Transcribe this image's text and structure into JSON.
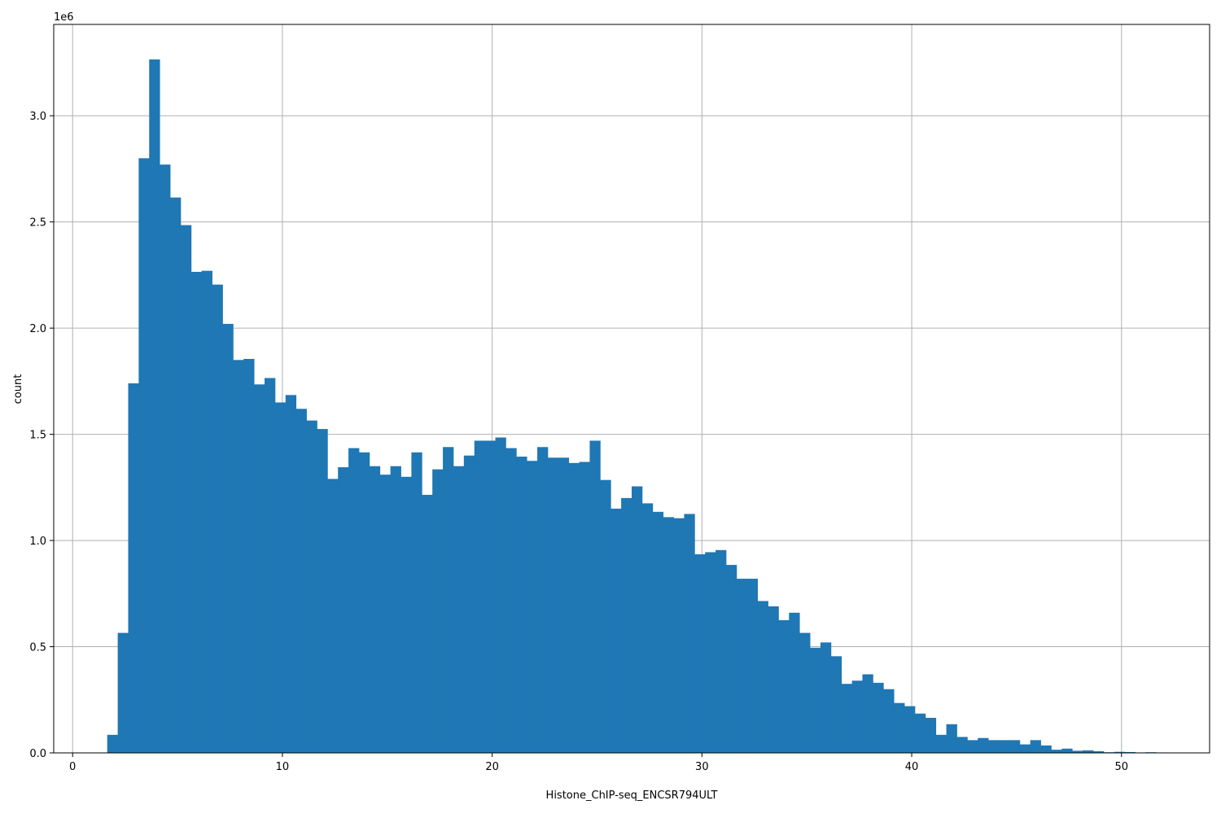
{
  "chart_data": {
    "type": "bar",
    "title": "",
    "xlabel": "Histone_ChIP-seq_ENCSR794ULT",
    "ylabel": "count",
    "y_offset_label": "1e6",
    "y_scale": 1000000,
    "xlim": [
      -0.9,
      54.2
    ],
    "ylim": [
      0,
      3430000
    ],
    "grid": true,
    "bar_color": "#1f77b4",
    "xticks": [
      0,
      10,
      20,
      30,
      40,
      50
    ],
    "xtick_labels": [
      "0",
      "10",
      "20",
      "30",
      "40",
      "50"
    ],
    "yticks": [
      0,
      500000,
      1000000,
      1500000,
      2000000,
      2500000,
      3000000
    ],
    "ytick_labels": [
      "0.0",
      "0.5",
      "1.0",
      "1.5",
      "2.0",
      "2.5",
      "3.0"
    ],
    "bin_start": 1.65,
    "bin_width": 0.5,
    "values": [
      85000,
      565000,
      1740000,
      2800000,
      3265000,
      2770000,
      2615000,
      2485000,
      2265000,
      2270000,
      2205000,
      2020000,
      1850000,
      1855000,
      1735000,
      1765000,
      1650000,
      1685000,
      1620000,
      1565000,
      1525000,
      1290000,
      1345000,
      1435000,
      1415000,
      1350000,
      1310000,
      1350000,
      1300000,
      1415000,
      1215000,
      1335000,
      1440000,
      1350000,
      1400000,
      1470000,
      1470000,
      1485000,
      1435000,
      1395000,
      1375000,
      1440000,
      1390000,
      1390000,
      1365000,
      1370000,
      1470000,
      1285000,
      1150000,
      1200000,
      1255000,
      1175000,
      1135000,
      1110000,
      1105000,
      1125000,
      935000,
      945000,
      955000,
      885000,
      820000,
      820000,
      715000,
      690000,
      625000,
      660000,
      565000,
      495000,
      520000,
      455000,
      325000,
      340000,
      370000,
      330000,
      300000,
      235000,
      220000,
      185000,
      165000,
      85000,
      135000,
      75000,
      60000,
      70000,
      60000,
      60000,
      60000,
      40000,
      60000,
      35000,
      15000,
      20000,
      10000,
      12000,
      8000,
      3000,
      5000,
      4000,
      2000,
      3000,
      2000
    ]
  }
}
